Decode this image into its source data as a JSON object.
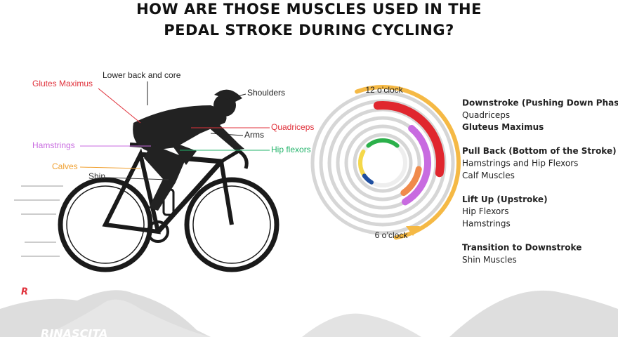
{
  "header": {
    "title_lines": [
      "HOW ARE THOSE MUSCLES USED IN THE",
      "PEDAL STROKE DURING CYCLING?"
    ]
  },
  "muscle_labels": [
    {
      "text": "Lower back and core",
      "color": "#222222"
    },
    {
      "text": "Glutes Maximus",
      "color": "#e0313b"
    },
    {
      "text": "Shoulders",
      "color": "#222222"
    },
    {
      "text": "Quadriceps",
      "color": "#e0313b"
    },
    {
      "text": "Arms",
      "color": "#222222"
    },
    {
      "text": "Hamstrings",
      "color": "#c86be0"
    },
    {
      "text": "Hip flexors",
      "color": "#22b36a"
    },
    {
      "text": "Calves",
      "color": "#f0a030"
    },
    {
      "text": "Shin",
      "color": "#333333"
    }
  ],
  "clock": {
    "top_label": "12 o’clock",
    "bottom_label": "6 o’clock"
  },
  "phases": [
    {
      "title": "Downstroke (Pushing Down Phase)",
      "items": [
        {
          "text": "Quadriceps",
          "bold": false
        },
        {
          "text": "Gluteus Maximus",
          "bold": true
        }
      ]
    },
    {
      "title": "Pull Back (Bottom of the Stroke)",
      "items": [
        {
          "text": "Hamstrings and Hip Flexors",
          "bold": false
        },
        {
          "text": "Calf Muscles",
          "bold": false
        }
      ]
    },
    {
      "title": "Lift Up (Upstroke)",
      "items": [
        {
          "text": "Hip Flexors",
          "bold": false
        },
        {
          "text": "Hamstrings",
          "bold": false
        }
      ]
    },
    {
      "title": "Transition to Downstroke",
      "items": [
        {
          "text": "Shin Muscles",
          "bold": false
        }
      ]
    }
  ],
  "brand": "RINASCITA"
}
